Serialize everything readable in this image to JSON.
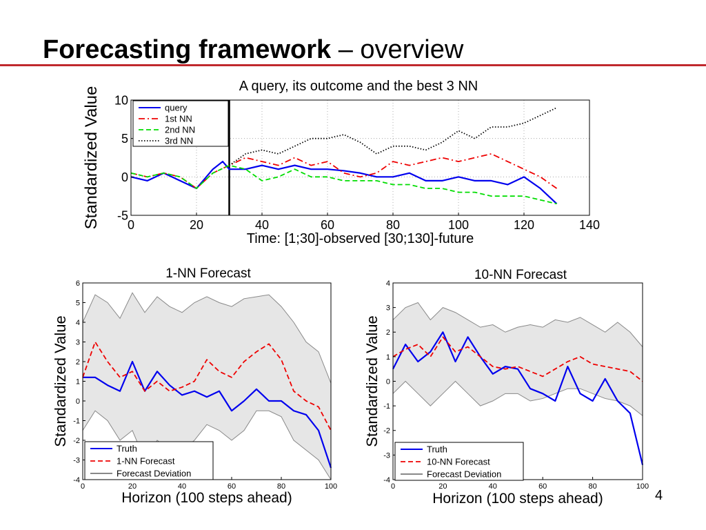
{
  "slide": {
    "title_bold": "Forecasting framework",
    "title_rest": " – overview",
    "page_number": "4",
    "accent_color": "#c0282d"
  },
  "chart_data": [
    {
      "type": "line",
      "title": "A query, its outcome and the best 3 NN",
      "xlabel": "Time: [1;30]-observed [30;130]-future",
      "ylabel": "Standardized Value",
      "xlim": [
        0,
        140
      ],
      "ylim": [
        -5,
        10
      ],
      "x_ticks": [
        "0",
        "20",
        "40",
        "60",
        "80",
        "100",
        "120",
        "140"
      ],
      "y_ticks": [
        "-5",
        "0",
        "5",
        "10"
      ],
      "grid": true,
      "legend_position": "top-left",
      "annotations": [
        {
          "type": "vertical-line",
          "x": 30
        }
      ],
      "series": [
        {
          "name": "query",
          "color": "#0000ee",
          "dash": "solid",
          "x": [
            0,
            5,
            10,
            15,
            20,
            25,
            28,
            30,
            35,
            40,
            45,
            50,
            55,
            60,
            65,
            70,
            75,
            80,
            85,
            90,
            95,
            100,
            105,
            110,
            115,
            120,
            125,
            130
          ],
          "y": [
            0,
            -0.5,
            0.5,
            -0.5,
            -1.5,
            1,
            2,
            1,
            1,
            1.5,
            1,
            1.5,
            1,
            1,
            0.8,
            0.5,
            0,
            0,
            0.5,
            -0.5,
            -0.5,
            0,
            -0.5,
            -0.5,
            -1,
            0,
            -1.5,
            -3.5
          ]
        },
        {
          "name": "1st NN",
          "color": "#ee0000",
          "dash": "dashdot",
          "x": [
            0,
            5,
            10,
            15,
            20,
            25,
            30,
            35,
            40,
            45,
            50,
            55,
            60,
            65,
            70,
            75,
            80,
            85,
            90,
            95,
            100,
            105,
            110,
            115,
            120,
            125,
            130
          ],
          "y": [
            0.5,
            0,
            0.5,
            0,
            -1.5,
            0.5,
            1.5,
            2.5,
            2,
            1.5,
            2.5,
            1.5,
            2,
            0.5,
            0,
            0.5,
            2,
            1.5,
            2,
            2.5,
            2,
            2.5,
            3,
            2,
            1,
            0,
            -1.5
          ]
        },
        {
          "name": "2nd NN",
          "color": "#00dd00",
          "dash": "dashed",
          "x": [
            0,
            5,
            10,
            15,
            20,
            25,
            30,
            35,
            40,
            45,
            50,
            55,
            60,
            65,
            70,
            75,
            80,
            85,
            90,
            95,
            100,
            105,
            110,
            115,
            120,
            125,
            130
          ],
          "y": [
            0.5,
            0,
            0.5,
            0,
            -1.5,
            0.5,
            1.5,
            1,
            -0.5,
            0,
            1,
            0,
            0,
            -0.5,
            -0.5,
            -0.5,
            -1,
            -1,
            -1.5,
            -1.5,
            -2,
            -2,
            -2.5,
            -2.5,
            -2.5,
            -3,
            -3.5
          ]
        },
        {
          "name": "3rd NN",
          "color": "#000000",
          "dash": "dotted",
          "x": [
            30,
            35,
            40,
            45,
            50,
            55,
            60,
            65,
            70,
            75,
            80,
            85,
            90,
            95,
            100,
            105,
            110,
            115,
            120,
            125,
            130
          ],
          "y": [
            1.5,
            3,
            3.5,
            3,
            4,
            5,
            5,
            5.5,
            4.5,
            3,
            4,
            4,
            3.5,
            4.5,
            6,
            5,
            6.5,
            6.5,
            7,
            8,
            9
          ]
        }
      ]
    },
    {
      "type": "line",
      "title": "1-NN Forecast",
      "xlabel": "Horizon (100 steps ahead)",
      "ylabel": "Standardized Value",
      "xlim": [
        0,
        100
      ],
      "ylim": [
        -4,
        6
      ],
      "x_ticks": [
        "0",
        "20",
        "40",
        "60",
        "80",
        "100"
      ],
      "y_ticks": [
        "-4",
        "-3",
        "-2",
        "-1",
        "0",
        "1",
        "2",
        "3",
        "4",
        "5",
        "6"
      ],
      "grid": false,
      "legend_position": "bottom-left",
      "series": [
        {
          "name": "Truth",
          "color": "#0000ee",
          "dash": "solid",
          "x": [
            0,
            5,
            10,
            15,
            20,
            25,
            30,
            35,
            40,
            45,
            50,
            55,
            60,
            65,
            70,
            75,
            80,
            85,
            90,
            95,
            100
          ],
          "y": [
            1.2,
            1.2,
            0.8,
            0.5,
            2,
            0.5,
            1.5,
            0.8,
            0.3,
            0.5,
            0.2,
            0.5,
            -0.5,
            0,
            0.6,
            0,
            0,
            -0.5,
            -0.7,
            -1.5,
            -3.4
          ]
        },
        {
          "name": "1-NN Forecast",
          "color": "#ee0000",
          "dash": "dashed",
          "x": [
            0,
            5,
            10,
            15,
            20,
            25,
            30,
            35,
            40,
            45,
            50,
            55,
            60,
            65,
            70,
            75,
            80,
            85,
            90,
            95,
            100
          ],
          "y": [
            1.2,
            3,
            2,
            1.2,
            1.5,
            0.5,
            1,
            0.5,
            0.7,
            1,
            2.1,
            1.5,
            1.2,
            2,
            2.5,
            2.9,
            2.1,
            0.5,
            0,
            -0.3,
            -1.5
          ]
        },
        {
          "name": "Forecast Deviation",
          "color": "#888888",
          "dash": "solid",
          "band_upper": [
            4,
            5.4,
            5,
            4.2,
            5.5,
            4.5,
            5.3,
            4.8,
            4.5,
            5,
            5.3,
            5,
            4.8,
            5.2,
            5.3,
            5.4,
            4.8,
            4,
            3,
            2.5,
            0.9
          ],
          "band_lower": [
            -1.5,
            -0.5,
            -1,
            -2,
            -1.5,
            -3,
            -2,
            -2.5,
            -2.5,
            -2,
            -1.2,
            -1.5,
            -2,
            -1.5,
            -0.5,
            -0.5,
            -0.8,
            -2,
            -2.5,
            -3,
            -4
          ]
        }
      ]
    },
    {
      "type": "line",
      "title": "10-NN Forecast",
      "xlabel": "Horizon (100 steps ahead)",
      "ylabel": "Standardized Value",
      "xlim": [
        0,
        100
      ],
      "ylim": [
        -4,
        4
      ],
      "x_ticks": [
        "0",
        "20",
        "40",
        "60",
        "80",
        "100"
      ],
      "y_ticks": [
        "-4",
        "-3",
        "-2",
        "-1",
        "0",
        "1",
        "2",
        "3",
        "4"
      ],
      "grid": false,
      "legend_position": "bottom-left",
      "series": [
        {
          "name": "Truth",
          "color": "#0000ee",
          "dash": "solid",
          "x": [
            0,
            5,
            10,
            15,
            20,
            25,
            30,
            35,
            40,
            45,
            50,
            55,
            60,
            65,
            70,
            75,
            80,
            85,
            90,
            95,
            100
          ],
          "y": [
            0.5,
            1.5,
            0.8,
            1.2,
            2,
            0.8,
            1.8,
            1,
            0.3,
            0.6,
            0.5,
            -0.3,
            -0.5,
            -0.8,
            0.6,
            -0.5,
            -0.8,
            0.1,
            -0.8,
            -1.3,
            -3.4
          ]
        },
        {
          "name": "10-NN Forecast",
          "color": "#ee0000",
          "dash": "dashed",
          "x": [
            0,
            5,
            10,
            15,
            20,
            25,
            30,
            35,
            40,
            45,
            50,
            55,
            60,
            65,
            70,
            75,
            80,
            85,
            90,
            95,
            100
          ],
          "y": [
            1,
            1.3,
            1.5,
            1,
            1.8,
            1.2,
            1.4,
            1,
            0.6,
            0.5,
            0.6,
            0.4,
            0.2,
            0.5,
            0.8,
            1,
            0.7,
            0.6,
            0.5,
            0.4,
            0
          ]
        },
        {
          "name": "Forecast Deviation",
          "color": "#888888",
          "dash": "solid",
          "band_upper": [
            2.5,
            3,
            3.2,
            2.5,
            3,
            2.8,
            2.5,
            2.2,
            2.3,
            2,
            2.2,
            2.3,
            2.2,
            2.5,
            2.4,
            2.6,
            2.3,
            2,
            2.4,
            2,
            1.4
          ],
          "band_lower": [
            -0.5,
            0,
            -0.5,
            -1,
            -0.5,
            0,
            -0.5,
            -1,
            -0.8,
            -0.5,
            -0.5,
            -0.8,
            -0.7,
            -0.5,
            -0.3,
            -0.3,
            -0.5,
            -0.7,
            -0.8,
            -1,
            -1.4
          ]
        }
      ]
    }
  ]
}
